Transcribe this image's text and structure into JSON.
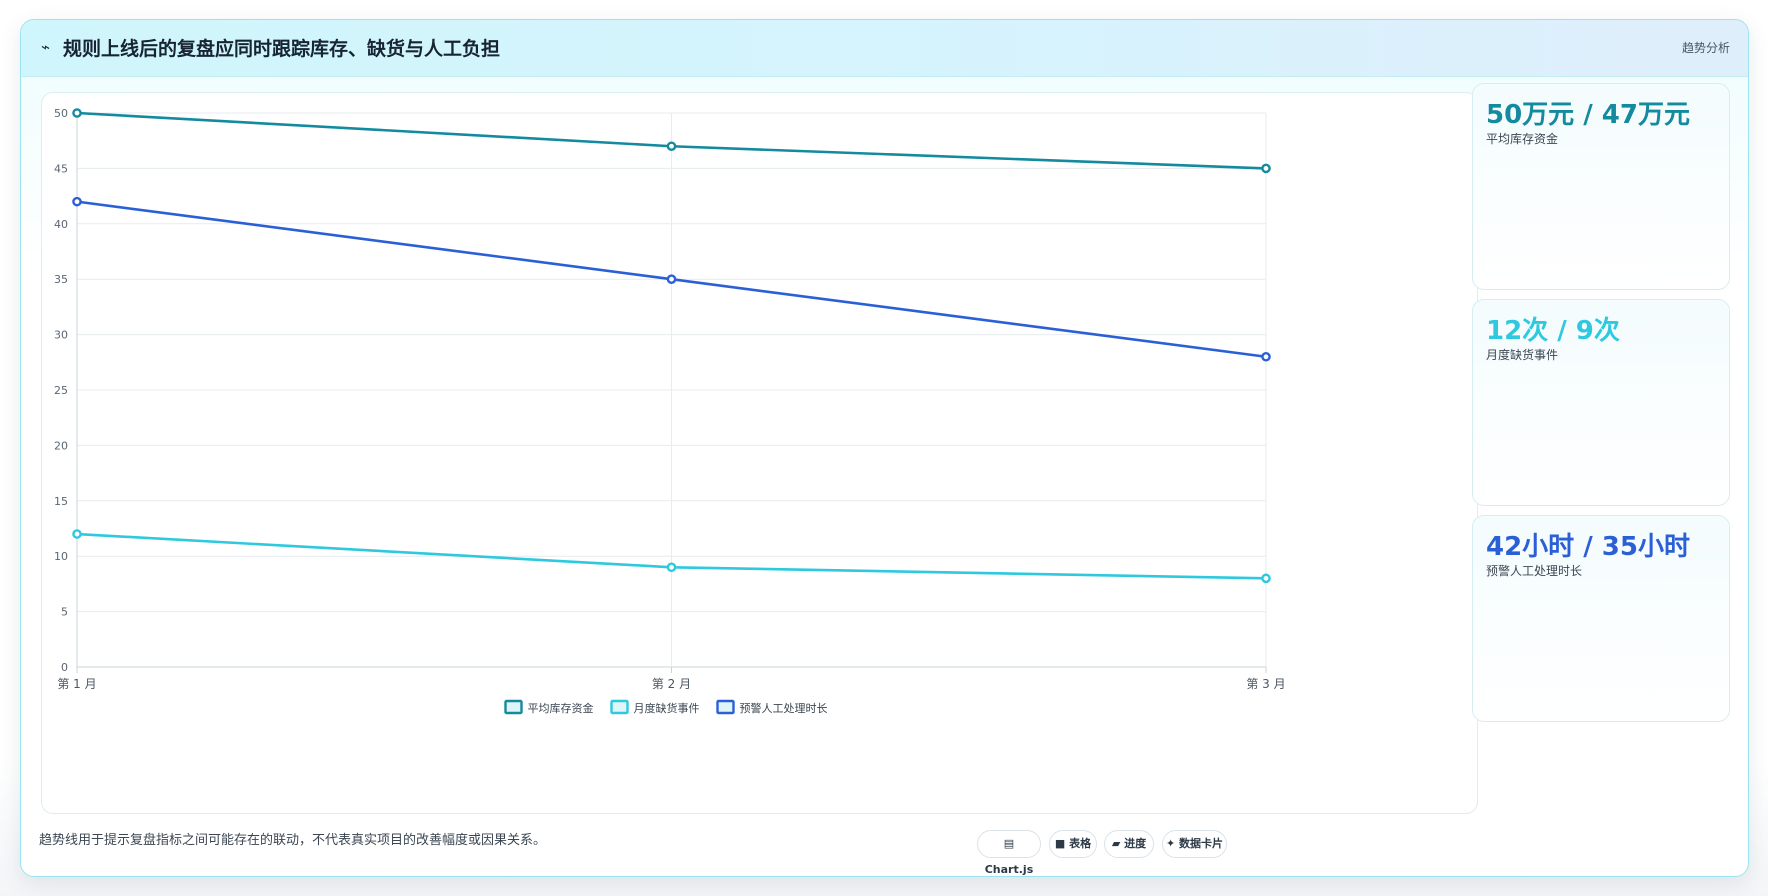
{
  "header": {
    "icon": "⌁",
    "title": "规则上线后的复盘应同时跟踪库存、缺货与人工负担",
    "tag": "趋势分析"
  },
  "chart_data": {
    "type": "line",
    "categories": [
      "第 1 月",
      "第 2 月",
      "第 3 月"
    ],
    "ylim": [
      0,
      50
    ],
    "yticks": [
      0,
      5,
      10,
      15,
      20,
      25,
      30,
      35,
      40,
      45,
      50
    ],
    "grid": true,
    "legend_position": "bottom",
    "series": [
      {
        "name": "平均库存资金",
        "values": [
          50,
          47,
          45
        ],
        "color": "#148a9e"
      },
      {
        "name": "月度缺货事件",
        "values": [
          12,
          9,
          8
        ],
        "color": "#2ec9de"
      },
      {
        "name": "预警人工处理时长",
        "values": [
          42,
          35,
          28
        ],
        "color": "#2b5fd6"
      }
    ]
  },
  "side_cards": [
    {
      "value": "50万元 / 47万元",
      "label": "平均库存资金",
      "color": "#148a9e"
    },
    {
      "value": "12次 / 9次",
      "label": "月度缺货事件",
      "color": "#2ec9de"
    },
    {
      "value": "42小时 / 35小时",
      "label": "预警人工处理时长",
      "color": "#2b5fd6"
    }
  ],
  "footer": {
    "note": "趋势线用于提示复盘指标之间可能存在的联动，不代表真实项目的改善幅度或因果关系。",
    "chips": [
      {
        "icon": "▤",
        "label": "Chart.js"
      },
      {
        "icon": "■",
        "label": "表格"
      },
      {
        "icon": "▰",
        "label": "进度"
      },
      {
        "icon": "✦",
        "label": "数据卡片"
      }
    ]
  }
}
